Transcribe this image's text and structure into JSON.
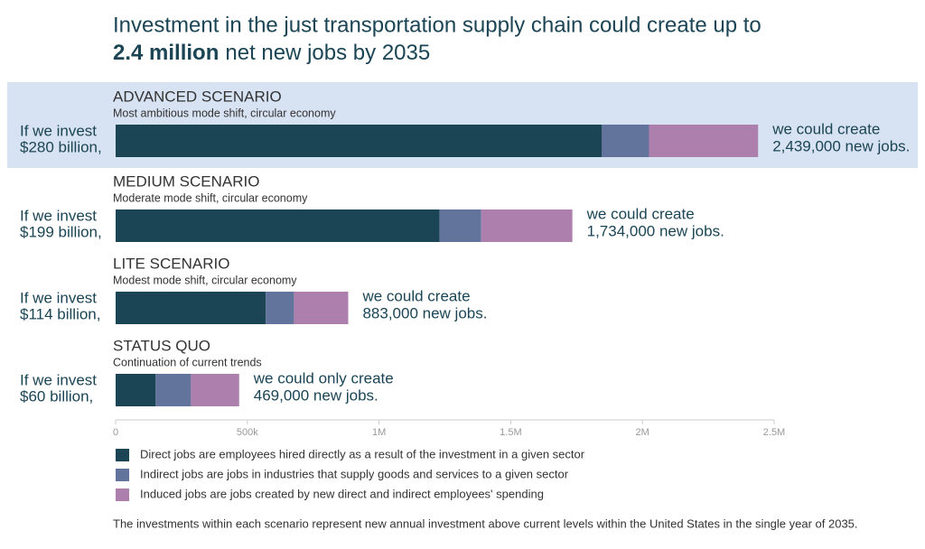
{
  "chart_data": {
    "type": "stacked-bar-horizontal",
    "title": "Investment in the just transportation supply chain could create up to",
    "title_highlight": "2.4 million",
    "title_end": "net new jobs by 2035",
    "categories": [
      "ADVANCED SCENARIO",
      "MEDIUM SCENARIO",
      "LITE SCENARIO",
      "STATUS QUO"
    ],
    "subtitles": [
      "Most ambitious mode shift, circular economy",
      "Moderate mode shift, circular economy",
      "Modest mode shift, circular economy",
      "Continuation of current trends"
    ],
    "invest_lines": [
      [
        "If we invest",
        "$280 billion,"
      ],
      [
        "If we invest",
        "$199 billion,"
      ],
      [
        "If we invest",
        "$114 billion,"
      ],
      [
        "If we invest",
        "$60 billion,"
      ]
    ],
    "result_lines": [
      [
        "we could create",
        "2,439,000 new jobs."
      ],
      [
        "we could create",
        "1,734,000 new jobs."
      ],
      [
        "we could create",
        "883,000 new jobs."
      ],
      [
        "we could only create",
        "469,000 new jobs."
      ]
    ],
    "series": [
      {
        "name": "Direct jobs are employees hired directly as a result of the investment in a given sector",
        "color": "#1b4555",
        "values": [
          1845000,
          1230000,
          570000,
          152000
        ]
      },
      {
        "name": "Indirect jobs are jobs in industries that supply goods and services to a given sector",
        "color": "#62739c",
        "values": [
          180000,
          158000,
          107000,
          134000
        ]
      },
      {
        "name": "Induced jobs are jobs created by new direct and indirect employees' spending",
        "color": "#ad7fac",
        "values": [
          414000,
          346000,
          206000,
          183000
        ]
      }
    ],
    "xlim": [
      0,
      2500000
    ],
    "xticks": [
      0,
      {
        "value": 500000,
        "label": "500k"
      },
      {
        "value": 1000000,
        "label": "1M"
      },
      {
        "value": 1500000,
        "label": "1.5M"
      },
      {
        "value": 2000000,
        "label": "2M"
      },
      {
        "value": 2500000,
        "label": "2.5M"
      }
    ],
    "footnote": "The investments within each scenario represent new annual investment above current levels within the United States in the single year of 2035."
  }
}
